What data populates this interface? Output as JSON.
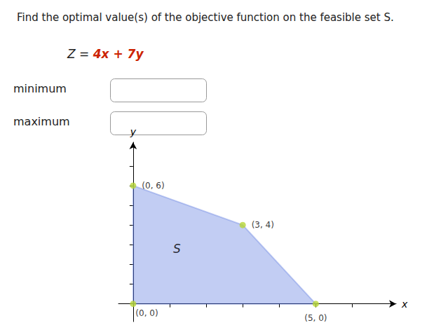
{
  "chart_data": {
    "type": "polygon",
    "title": "Find the optimal value(s) of the objective function on the feasible set S.",
    "x": [
      0,
      0,
      3,
      5
    ],
    "values": [
      0,
      6,
      4,
      0
    ],
    "value_labels": [
      "(0, 0)",
      "(0, 6)",
      "(3, 4)",
      "(5, 0)"
    ],
    "xlabel": "x",
    "ylabel": "y",
    "xlim": [
      -0.4,
      7.2
    ],
    "ylim": [
      -0.9,
      8.2
    ],
    "xticks": [
      1,
      2,
      3,
      4,
      5,
      6
    ],
    "yticks": [
      1,
      2,
      3,
      4,
      5,
      6,
      7
    ],
    "tick_labels": false,
    "grid": false,
    "annotations": [
      {
        "text": "Z = "
      },
      {
        "text": "4x + 7y",
        "color": "#cc2200"
      },
      {
        "text": "minimum"
      },
      {
        "text": "maximum"
      },
      {
        "text": "S",
        "x": 1.2,
        "y": 2.8
      }
    ]
  }
}
